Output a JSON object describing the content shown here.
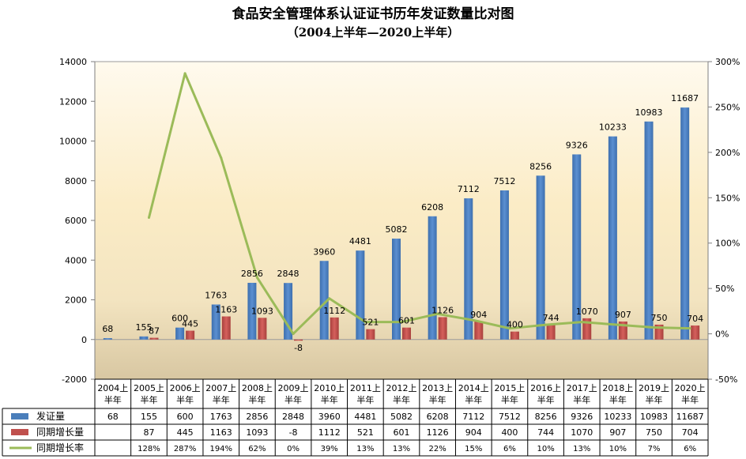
{
  "chart_data": {
    "type": "bar",
    "title": "食品安全管理体系认证证书历年发证数量比对图",
    "subtitle": "（2004上半年—2020上半年）",
    "categories": [
      "2004上半年",
      "2005上半年",
      "2006上半年",
      "2007上半年",
      "2008上半年",
      "2009上半年",
      "2010上半年",
      "2011上半年",
      "2012上半年",
      "2013上半年",
      "2014上半年",
      "2015上半年",
      "2016上半年",
      "2017上半年",
      "2018上半年",
      "2019上半年",
      "2020上半年"
    ],
    "series": [
      {
        "name": "发证量",
        "type": "bar",
        "axis": "left",
        "color": "#4a7ebb",
        "values": [
          68,
          155,
          600,
          1763,
          2856,
          2848,
          3960,
          4481,
          5082,
          6208,
          7112,
          7512,
          8256,
          9326,
          10233,
          10983,
          11687
        ],
        "labels": [
          "68",
          "155",
          "600",
          "1763",
          "2856",
          "2848",
          "3960",
          "4481",
          "5082",
          "6208",
          "7112",
          "7512",
          "8256",
          "9326",
          "10233",
          "10983",
          "11687"
        ]
      },
      {
        "name": "同期增长量",
        "type": "bar",
        "axis": "left",
        "color": "#c0504d",
        "values": [
          null,
          87,
          445,
          1163,
          1093,
          -8,
          1112,
          521,
          601,
          1126,
          904,
          400,
          744,
          1070,
          907,
          750,
          704
        ],
        "labels": [
          "",
          "87",
          "445",
          "1163",
          "1093",
          "-8",
          "1112",
          "521",
          "601",
          "1126",
          "904",
          "400",
          "744",
          "1070",
          "907",
          "750",
          "704"
        ]
      },
      {
        "name": "同期增长率",
        "type": "line",
        "axis": "right",
        "color": "#9bbb59",
        "values": [
          null,
          128,
          287,
          194,
          62,
          0,
          39,
          13,
          13,
          22,
          15,
          6,
          10,
          13,
          10,
          7,
          6
        ],
        "labels": [
          "",
          "128%",
          "287%",
          "194%",
          "62%",
          "0%",
          "39%",
          "13%",
          "13%",
          "22%",
          "15%",
          "6%",
          "10%",
          "13%",
          "10%",
          "7%",
          "6%"
        ]
      }
    ],
    "ylim": [
      -2000,
      14000
    ],
    "y_ticks": [
      "-2000",
      "0",
      "2000",
      "4000",
      "6000",
      "8000",
      "10000",
      "12000",
      "14000"
    ],
    "y2lim": [
      -50,
      300
    ],
    "y2_ticks": [
      "-50%",
      "0%",
      "50%",
      "100%",
      "150%",
      "200%",
      "250%",
      "300%"
    ],
    "legend": "data-table-below"
  }
}
